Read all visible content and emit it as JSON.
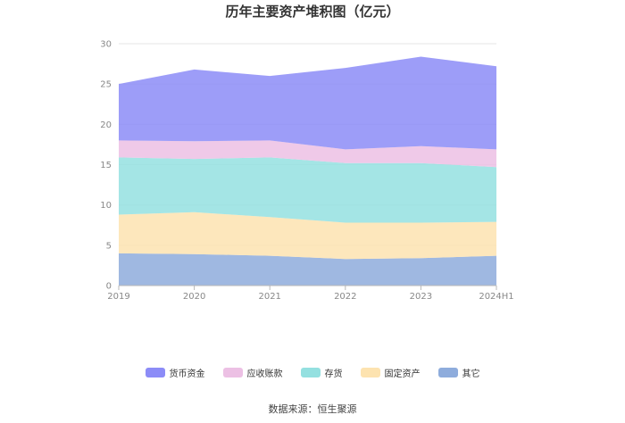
{
  "chart_data": {
    "type": "area",
    "stacked": true,
    "title": "历年主要资产堆积图（亿元）",
    "categories": [
      "2019",
      "2020",
      "2021",
      "2022",
      "2023",
      "2024H1"
    ],
    "ylim": [
      0,
      30
    ],
    "yticks": [
      0,
      5,
      10,
      15,
      20,
      25,
      30
    ],
    "grid": true,
    "legend_position": "bottom",
    "series": [
      {
        "name": "其它",
        "color": "#8eacdc",
        "values": [
          4.0,
          3.9,
          3.7,
          3.3,
          3.4,
          3.7
        ]
      },
      {
        "name": "固定资产",
        "color": "#fde3b0",
        "values": [
          4.8,
          5.2,
          4.8,
          4.5,
          4.4,
          4.2
        ]
      },
      {
        "name": "存货",
        "color": "#94e0e0",
        "values": [
          7.1,
          6.6,
          7.4,
          7.4,
          7.4,
          6.8
        ]
      },
      {
        "name": "应收账款",
        "color": "#ecc0e4",
        "values": [
          2.1,
          2.2,
          2.1,
          1.7,
          2.1,
          2.2
        ]
      },
      {
        "name": "货币资金",
        "color": "#8c8cf7",
        "values": [
          7.0,
          8.9,
          8.0,
          10.1,
          11.1,
          10.3
        ]
      }
    ],
    "legend_order": [
      "货币资金",
      "应收账款",
      "存货",
      "固定资产",
      "其它"
    ]
  },
  "source_text": "数据来源：恒生聚源"
}
